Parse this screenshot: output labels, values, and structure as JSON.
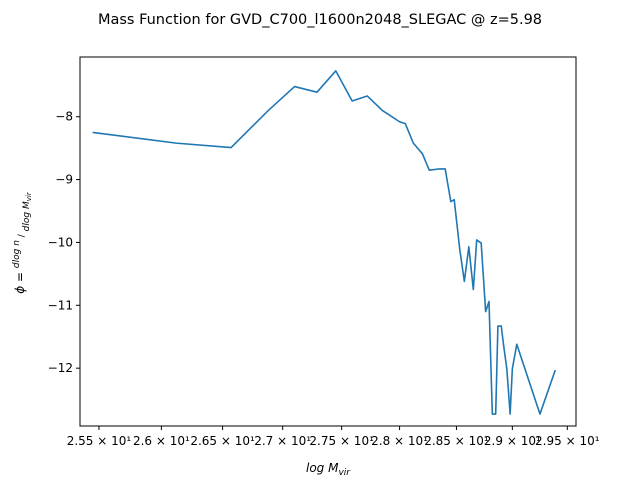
{
  "chart_data": {
    "type": "line",
    "title": "Mass Function for GVD_C700_l1600n2048_SLEGAC @ z=5.98",
    "xlabel": "log M_vir",
    "ylabel": "ϕ = dlog n / dlog M_vir",
    "x_scale": "log",
    "xlim": [
      2.535,
      2.958
    ],
    "ylim": [
      -12.92,
      -7.05
    ],
    "grid": false,
    "x_ticks": [
      {
        "value": 2.55,
        "label": "2.55 × 10¹"
      },
      {
        "value": 2.6,
        "label": "2.6 × 10¹"
      },
      {
        "value": 2.65,
        "label": "2.65 × 10¹"
      },
      {
        "value": 2.7,
        "label": "2.7 × 10¹"
      },
      {
        "value": 2.75,
        "label": "2.75 × 10¹"
      },
      {
        "value": 2.8,
        "label": "2.8 × 10¹"
      },
      {
        "value": 2.85,
        "label": "2.85 × 10¹"
      },
      {
        "value": 2.9,
        "label": "2.9 × 10¹"
      },
      {
        "value": 2.95,
        "label": "2.95 × 10¹"
      }
    ],
    "y_ticks": [
      {
        "value": -8,
        "label": "−8"
      },
      {
        "value": -9,
        "label": "−9"
      },
      {
        "value": -10,
        "label": "−10"
      },
      {
        "value": -11,
        "label": "−11"
      },
      {
        "value": -12,
        "label": "−12"
      }
    ],
    "series": [
      {
        "name": "",
        "color": "#1f77b4",
        "x": [
          2.545,
          2.612,
          2.657,
          2.688,
          2.71,
          2.729,
          2.745,
          2.759,
          2.772,
          2.785,
          2.8,
          2.805,
          2.812,
          2.82,
          2.826,
          2.835,
          2.84,
          2.845,
          2.848,
          2.853,
          2.857,
          2.861,
          2.865,
          2.868,
          2.872,
          2.876,
          2.879,
          2.882,
          2.885,
          2.887,
          2.89,
          2.892,
          2.895,
          2.898,
          2.9,
          2.904,
          2.925,
          2.939
        ],
        "y": [
          -8.25,
          -8.42,
          -8.49,
          -7.9,
          -7.52,
          -7.61,
          -7.27,
          -7.75,
          -7.67,
          -7.9,
          -8.08,
          -8.11,
          -8.42,
          -8.59,
          -8.85,
          -8.83,
          -8.83,
          -9.35,
          -9.32,
          -10.12,
          -10.62,
          -10.07,
          -10.75,
          -9.96,
          -10.01,
          -11.1,
          -10.94,
          -12.73,
          -12.73,
          -11.33,
          -11.33,
          -11.62,
          -12.01,
          -12.73,
          -12.01,
          -11.62,
          -12.73,
          -12.03
        ]
      }
    ]
  }
}
